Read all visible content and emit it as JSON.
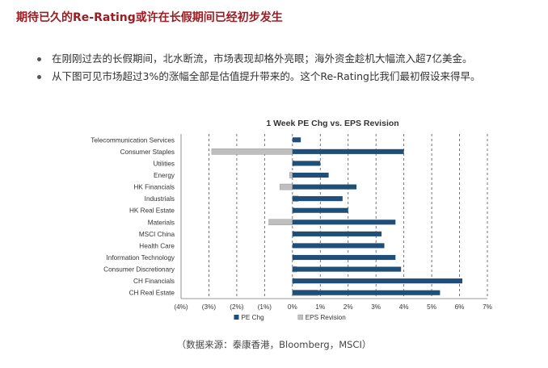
{
  "heading": "期待已久的Re-Rating或许在长假期间已经初步发生",
  "bullets": [
    "在刚刚过去的长假期间，北水断流，市场表现却格外亮眼；海外资金趁机大幅流入超7亿美金。",
    "从下图可见市场超过3%的涨幅全部是估值提升带来的。这个Re-Rating比我们最初假设来得早。"
  ],
  "source": "（数据来源：泰康香港，Bloomberg，MSCI）",
  "colors": {
    "heading": "#9b1d24",
    "pe": "#1f4e79",
    "eps": "#bfbfbf"
  },
  "chart_data": {
    "type": "bar",
    "orientation": "horizontal",
    "title": "1 Week PE Chg vs. EPS Revision",
    "categories": [
      "Telecommunication Services",
      "Consumer Staples",
      "Utilities",
      "Energy",
      "HK Financials",
      "Industrials",
      "HK Real Estate",
      "Materials",
      "MSCI China",
      "Health Care",
      "Information Technology",
      "Consumer Discretionary",
      "CH Financials",
      "CH Real Estate"
    ],
    "series": [
      {
        "name": "PE Chg",
        "values": [
          0.3,
          4.0,
          1.0,
          1.3,
          2.3,
          1.8,
          2.0,
          3.7,
          3.2,
          3.3,
          3.7,
          3.9,
          6.1,
          5.3
        ]
      },
      {
        "name": "EPS Revision",
        "values": [
          0.0,
          -2.9,
          0.05,
          -0.1,
          -0.45,
          0.2,
          0.05,
          -0.85,
          0.05,
          0.0,
          0.05,
          0.15,
          0.05,
          0.9
        ]
      }
    ],
    "xlim": [
      -4,
      7
    ],
    "xticks": [
      -4,
      -3,
      -2,
      -1,
      0,
      1,
      2,
      3,
      4,
      5,
      6,
      7
    ],
    "xtick_labels": [
      "(4%)",
      "(3%)",
      "(2%)",
      "(1%)",
      "0%",
      "1%",
      "2%",
      "3%",
      "4%",
      "5%",
      "6%",
      "7%"
    ],
    "grid": "vertical-dashed",
    "legend": "bottom"
  }
}
